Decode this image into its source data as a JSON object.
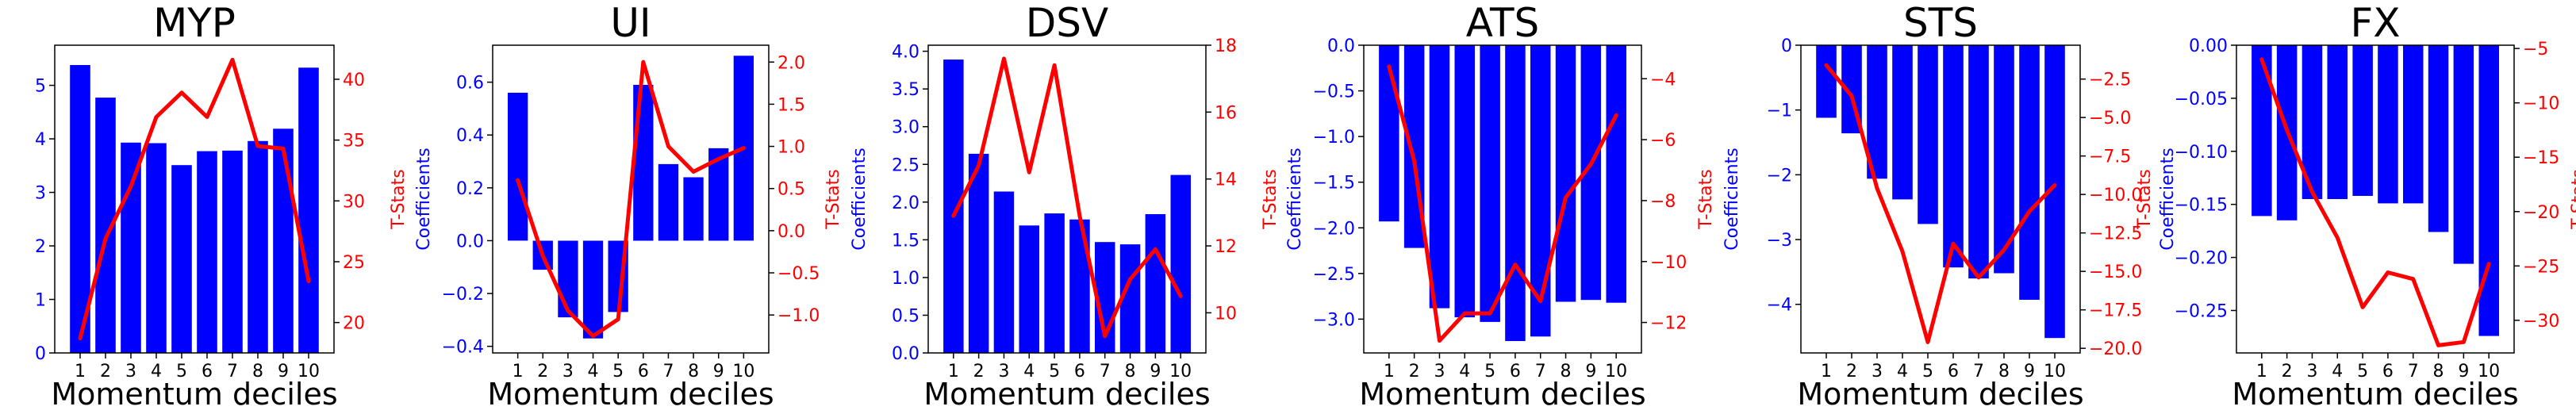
{
  "colors": {
    "bars": "#0000ff",
    "line": "#ff0000",
    "axis": "#000000"
  },
  "chart_data": [
    {
      "type": "bar",
      "title": "MYP",
      "xlabel": "Momentum deciles",
      "ylabel": "Coefficients",
      "ylabel_right": "T-Stats",
      "categories": [
        "1",
        "2",
        "3",
        "4",
        "5",
        "6",
        "7",
        "8",
        "9",
        "10"
      ],
      "ylim": [
        0,
        5.75
      ],
      "yticks": [
        0,
        1,
        2,
        3,
        4,
        5
      ],
      "ytick_labels": [
        "0",
        "1",
        "2",
        "3",
        "4",
        "5"
      ],
      "y2lim": [
        17.5,
        42.8
      ],
      "y2ticks": [
        20,
        25,
        30,
        35,
        40
      ],
      "y2tick_labels": [
        "20",
        "25",
        "30",
        "35",
        "40"
      ],
      "series": [
        {
          "name": "Coefficients",
          "type": "bar",
          "axis": "left",
          "values": [
            5.38,
            4.77,
            3.93,
            3.92,
            3.51,
            3.77,
            3.78,
            3.96,
            4.19,
            5.33
          ]
        },
        {
          "name": "T-Stats",
          "type": "line",
          "axis": "right",
          "values": [
            18.7,
            26.9,
            31.2,
            36.9,
            38.9,
            36.9,
            41.6,
            34.5,
            34.3,
            23.4
          ]
        }
      ]
    },
    {
      "type": "bar",
      "title": "UI",
      "xlabel": "Momentum deciles",
      "ylabel": "Coefficients",
      "ylabel_right": "T-Stats",
      "categories": [
        "1",
        "2",
        "3",
        "4",
        "5",
        "6",
        "7",
        "8",
        "9",
        "10"
      ],
      "ylim": [
        -0.425,
        0.74
      ],
      "yticks": [
        -0.4,
        -0.2,
        0.0,
        0.2,
        0.4,
        0.6
      ],
      "ytick_labels": [
        "−0.4",
        "−0.2",
        "0.0",
        "0.2",
        "0.4",
        "0.6"
      ],
      "y2lim": [
        -1.45,
        2.2
      ],
      "y2ticks": [
        -1.0,
        -0.5,
        0.0,
        0.5,
        1.0,
        1.5,
        2.0
      ],
      "y2tick_labels": [
        "−1.0",
        "−0.5",
        "0.0",
        "0.5",
        "1.0",
        "1.5",
        "2.0"
      ],
      "series": [
        {
          "name": "Coefficients",
          "type": "bar",
          "axis": "left",
          "values": [
            0.56,
            -0.11,
            -0.29,
            -0.37,
            -0.27,
            0.59,
            0.29,
            0.24,
            0.35,
            0.7
          ]
        },
        {
          "name": "T-Stats",
          "type": "line",
          "axis": "right",
          "values": [
            0.6,
            -0.3,
            -0.95,
            -1.25,
            -1.05,
            2.0,
            1.0,
            0.7,
            0.85,
            0.98
          ]
        }
      ]
    },
    {
      "type": "bar",
      "title": "DSV",
      "xlabel": "Momentum deciles",
      "ylabel": "Coefficients",
      "ylabel_right": "T-Stats",
      "categories": [
        "1",
        "2",
        "3",
        "4",
        "5",
        "6",
        "7",
        "8",
        "9",
        "10"
      ],
      "ylim": [
        0,
        4.08
      ],
      "yticks": [
        0,
        0.5,
        1.0,
        1.5,
        2.0,
        2.5,
        3.0,
        3.5,
        4.0
      ],
      "ytick_labels": [
        "0.0",
        "0.5",
        "1.0",
        "1.5",
        "2.0",
        "2.5",
        "3.0",
        "3.5",
        "4.0"
      ],
      "y2lim": [
        8.8,
        18.0
      ],
      "y2ticks": [
        10,
        12,
        14,
        16,
        18
      ],
      "y2tick_labels": [
        "10",
        "12",
        "14",
        "16",
        "18"
      ],
      "series": [
        {
          "name": "Coefficients",
          "type": "bar",
          "axis": "left",
          "values": [
            3.89,
            2.64,
            2.14,
            1.69,
            1.85,
            1.77,
            1.47,
            1.44,
            1.84,
            2.36
          ]
        },
        {
          "name": "T-Stats",
          "type": "line",
          "axis": "right",
          "values": [
            12.9,
            14.4,
            17.6,
            14.2,
            17.4,
            12.9,
            9.3,
            11.0,
            11.9,
            10.5
          ]
        }
      ]
    },
    {
      "type": "bar",
      "title": "ATS",
      "xlabel": "Momentum deciles",
      "ylabel": "Coefficients",
      "ylabel_right": "T-Stats",
      "categories": [
        "1",
        "2",
        "3",
        "4",
        "5",
        "6",
        "7",
        "8",
        "9",
        "10"
      ],
      "ylim": [
        -3.37,
        0.0
      ],
      "yticks": [
        0.0,
        -0.5,
        -1.0,
        -1.5,
        -2.0,
        -2.5,
        -3.0
      ],
      "ytick_labels": [
        "0.0",
        "−0.5",
        "−1.0",
        "−1.5",
        "−2.0",
        "−2.5",
        "−3.0"
      ],
      "y2lim": [
        -13.0,
        -2.9
      ],
      "y2ticks": [
        -4,
        -6,
        -8,
        -10,
        -12
      ],
      "y2tick_labels": [
        "−4",
        "−6",
        "−8",
        "−10",
        "−12"
      ],
      "series": [
        {
          "name": "Coefficients",
          "type": "bar",
          "axis": "left",
          "values": [
            -1.93,
            -2.22,
            -2.88,
            -2.98,
            -3.03,
            -3.24,
            -3.19,
            -2.81,
            -2.79,
            -2.82
          ]
        },
        {
          "name": "T-Stats",
          "type": "line",
          "axis": "right",
          "values": [
            -3.6,
            -6.7,
            -12.6,
            -11.7,
            -11.7,
            -10.1,
            -11.3,
            -7.9,
            -6.8,
            -5.2
          ]
        }
      ]
    },
    {
      "type": "bar",
      "title": "STS",
      "xlabel": "Momentum deciles",
      "ylabel": "Coefficients",
      "ylabel_right": "T-Stats",
      "categories": [
        "1",
        "2",
        "3",
        "4",
        "5",
        "6",
        "7",
        "8",
        "9",
        "10"
      ],
      "ylim": [
        -4.75,
        0.0
      ],
      "yticks": [
        0,
        -1,
        -2,
        -3,
        -4
      ],
      "ytick_labels": [
        "0",
        "−1",
        "−2",
        "−3",
        "−4"
      ],
      "y2lim": [
        -20.3,
        -0.3
      ],
      "y2ticks": [
        -2.5,
        -5.0,
        -7.5,
        -10.0,
        -12.5,
        -15.0,
        -17.5,
        -20.0
      ],
      "y2tick_labels": [
        "−2.5",
        "−5.0",
        "−7.5",
        "−10.0",
        "−12.5",
        "−15.0",
        "−17.5",
        "−20.0"
      ],
      "series": [
        {
          "name": "Coefficients",
          "type": "bar",
          "axis": "left",
          "values": [
            -1.12,
            -1.36,
            -2.06,
            -2.38,
            -2.76,
            -3.43,
            -3.6,
            -3.52,
            -3.93,
            -4.52
          ]
        },
        {
          "name": "T-Stats",
          "type": "line",
          "axis": "right",
          "values": [
            -1.6,
            -3.6,
            -9.6,
            -13.7,
            -19.6,
            -13.2,
            -15.4,
            -13.6,
            -11.1,
            -9.4
          ]
        }
      ]
    },
    {
      "type": "bar",
      "title": "FX",
      "xlabel": "Momentum deciles",
      "ylabel": "Coefficients",
      "ylabel_right": "T-Stats",
      "categories": [
        "1",
        "2",
        "3",
        "4",
        "5",
        "6",
        "7",
        "8",
        "9",
        "10"
      ],
      "ylim": [
        -0.29,
        0.0
      ],
      "yticks": [
        0.0,
        -0.05,
        -0.1,
        -0.15,
        -0.2,
        -0.25
      ],
      "ytick_labels": [
        "0.00",
        "−0.05",
        "−0.10",
        "−0.15",
        "−0.20",
        "−0.25"
      ],
      "y2lim": [
        -33.0,
        -4.7
      ],
      "y2ticks": [
        -5,
        -10,
        -15,
        -20,
        -25,
        -30
      ],
      "y2tick_labels": [
        "−5",
        "−10",
        "−15",
        "−20",
        "−25",
        "−30"
      ],
      "series": [
        {
          "name": "Coefficients",
          "type": "bar",
          "axis": "left",
          "values": [
            -0.161,
            -0.165,
            -0.145,
            -0.145,
            -0.142,
            -0.149,
            -0.149,
            -0.176,
            -0.206,
            -0.274
          ]
        },
        {
          "name": "T-Stats",
          "type": "line",
          "axis": "right",
          "values": [
            -6.0,
            -12.5,
            -18.2,
            -22.4,
            -28.8,
            -25.6,
            -26.2,
            -32.3,
            -32.0,
            -24.8
          ]
        }
      ]
    }
  ]
}
